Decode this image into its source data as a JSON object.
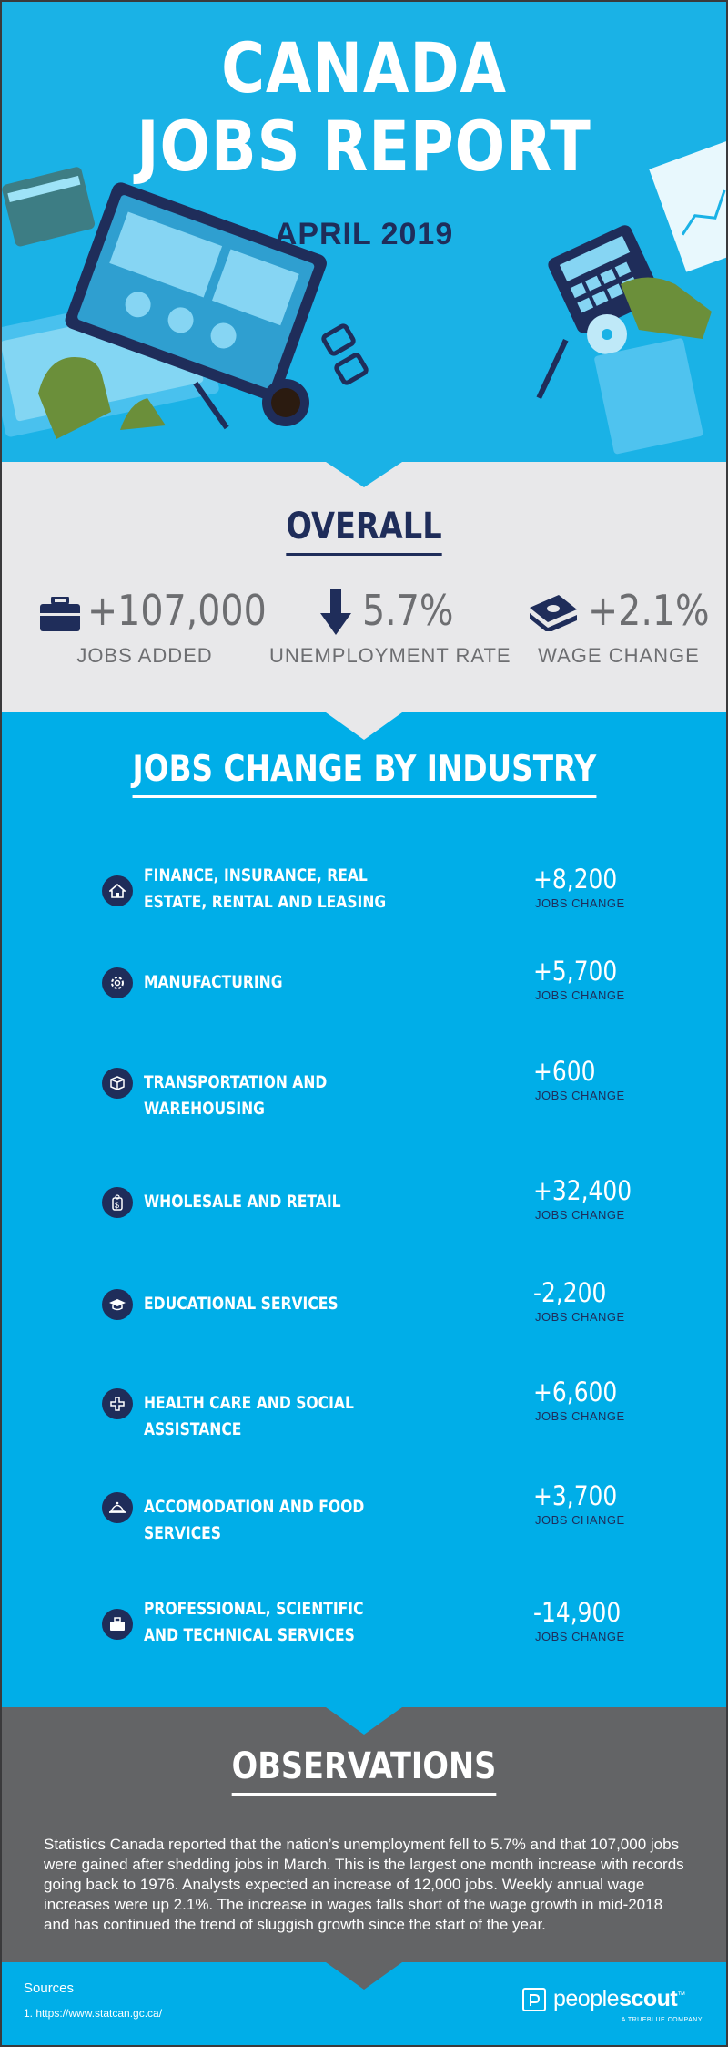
{
  "header": {
    "title_line1": "CANADA",
    "title_line2": "JOBS REPORT",
    "date": "APRIL 2019"
  },
  "overall": {
    "title": "OVERALL",
    "stats": [
      {
        "icon": "briefcase-icon",
        "value": "+107,000",
        "label": "JOBS ADDED"
      },
      {
        "icon": "down-arrow-icon",
        "value": "5.7%",
        "label": "UNEMPLOYMENT RATE"
      },
      {
        "icon": "money-stack-icon",
        "value": "+2.1%",
        "label": "WAGE CHANGE"
      }
    ]
  },
  "industry": {
    "title": "JOBS CHANGE BY INDUSTRY",
    "change_label": "JOBS CHANGE",
    "rows": [
      {
        "icon": "house-icon",
        "name": "FINANCE, INSURANCE, REAL ESTATE, RENTAL AND LEASING",
        "value": "+8,200"
      },
      {
        "icon": "gear-icon",
        "name": "MANUFACTURING",
        "value": "+5,700"
      },
      {
        "icon": "box-icon",
        "name": "TRANSPORTATION AND WAREHOUSING",
        "value": "+600"
      },
      {
        "icon": "price-tag-icon",
        "name": "WHOLESALE AND RETAIL",
        "value": "+32,400"
      },
      {
        "icon": "graduation-cap-icon",
        "name": "EDUCATIONAL SERVICES",
        "value": "-2,200"
      },
      {
        "icon": "medical-cross-icon",
        "name": "HEALTH CARE AND SOCIAL ASSISTANCE",
        "value": "+6,600"
      },
      {
        "icon": "serving-cloche-icon",
        "name": "ACCOMODATION AND FOOD SERVICES",
        "value": "+3,700"
      },
      {
        "icon": "briefcase-icon",
        "name": "PROFESSIONAL, SCIENTIFIC AND TECHNICAL SERVICES",
        "value": "-14,900"
      }
    ]
  },
  "observations": {
    "title": "OBSERVATIONS",
    "text": "Statistics Canada reported that the nation’s unemployment fell to 5.7% and that 107,000 jobs were gained after shedding jobs in March. This is the largest one month increase with records going back to 1976. Analysts expected an increase of 12,000 jobs. Weekly annual wage increases were up 2.1%. The increase in wages falls short of the wage growth in mid-2018 and has continued the trend of sluggish growth since the start of the year."
  },
  "footer": {
    "sources_title": "Sources",
    "source_1": "1. https://www.statcan.gc.ca/",
    "brand_part1": "people",
    "brand_part2": "scout",
    "brand_tm": "™",
    "brand_tagline": "A TRUEBLUE COMPANY"
  },
  "colors": {
    "navy": "#1f2d5a",
    "sky_blue": "#00aee8",
    "light_gray": "#e8e8ea",
    "dark_gray": "#636466",
    "text_gray": "#6d6e71"
  }
}
